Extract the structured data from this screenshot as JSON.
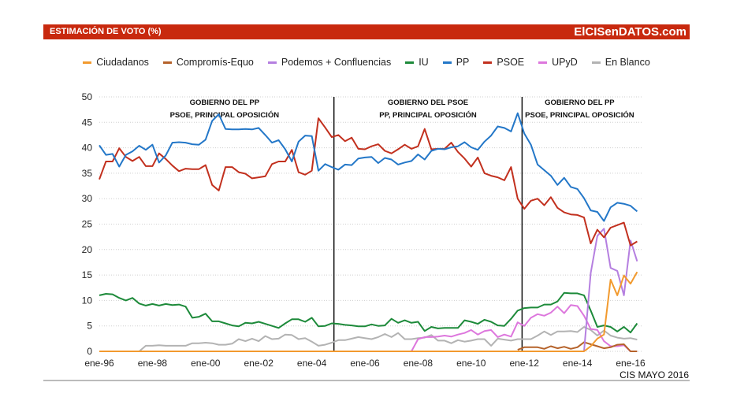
{
  "header": {
    "title": "ESTIMACIÓN DE VOTO (%)",
    "brand": "ElCISenDATOS.com"
  },
  "source": "CIS MAYO 2016",
  "chart_data": {
    "type": "line",
    "ylim": [
      0,
      50
    ],
    "yticks": [
      0,
      5,
      10,
      15,
      20,
      25,
      30,
      35,
      40,
      45,
      50
    ],
    "xtick_labels": [
      "ene-96",
      "ene-98",
      "ene-00",
      "ene-02",
      "ene-04",
      "ene-06",
      "ene-08",
      "ene-10",
      "ene-12",
      "ene-14",
      "ene-16"
    ],
    "grid": "horizontal dotted",
    "legend": "top",
    "x": [
      "1996-01",
      "1996-04",
      "1996-07",
      "1996-10",
      "1997-01",
      "1997-04",
      "1997-07",
      "1997-10",
      "1998-01",
      "1998-04",
      "1998-07",
      "1998-10",
      "1999-01",
      "1999-04",
      "1999-07",
      "1999-10",
      "2000-01",
      "2000-04",
      "2000-07",
      "2000-10",
      "2001-01",
      "2001-04",
      "2001-07",
      "2001-10",
      "2002-01",
      "2002-04",
      "2002-07",
      "2002-10",
      "2003-01",
      "2003-04",
      "2003-07",
      "2003-10",
      "2004-01",
      "2004-04",
      "2004-07",
      "2004-10",
      "2005-01",
      "2005-04",
      "2005-07",
      "2005-10",
      "2006-01",
      "2006-04",
      "2006-07",
      "2006-10",
      "2007-01",
      "2007-04",
      "2007-07",
      "2007-10",
      "2008-01",
      "2008-04",
      "2008-07",
      "2008-10",
      "2009-01",
      "2009-04",
      "2009-07",
      "2009-10",
      "2010-01",
      "2010-04",
      "2010-07",
      "2010-10",
      "2011-01",
      "2011-04",
      "2011-07",
      "2011-10",
      "2012-01",
      "2012-04",
      "2012-07",
      "2012-10",
      "2013-01",
      "2013-04",
      "2013-07",
      "2013-10",
      "2014-01",
      "2014-04",
      "2014-07",
      "2014-10",
      "2015-01",
      "2015-04",
      "2015-07",
      "2015-10",
      "2016-01",
      "2016-04"
    ],
    "series": [
      {
        "name": "Ciudadanos",
        "color": "#f29a2e",
        "values": [
          0,
          0,
          0,
          0,
          0,
          0,
          0,
          0,
          0,
          0,
          0,
          0,
          0,
          0,
          0,
          0,
          0,
          0,
          0,
          0,
          0,
          0,
          0,
          0,
          0,
          0,
          0,
          0,
          0,
          0,
          0,
          0,
          0,
          0,
          0,
          0,
          0,
          0,
          0,
          0,
          0,
          0,
          0,
          0,
          0,
          0,
          0,
          0,
          0,
          0,
          0,
          0,
          0,
          0,
          0,
          0,
          0,
          0,
          0,
          0,
          0,
          0,
          0,
          0,
          0,
          0,
          0,
          0,
          0,
          0,
          0,
          0,
          0,
          0,
          1.0,
          2.5,
          3.3,
          14.1,
          11.0,
          14.9,
          13.3,
          15.6
        ]
      },
      {
        "name": "Compromís-Equo",
        "color": "#b5622a",
        "values": [
          null,
          null,
          null,
          null,
          null,
          null,
          null,
          null,
          null,
          null,
          null,
          null,
          null,
          null,
          null,
          null,
          null,
          null,
          null,
          null,
          null,
          null,
          null,
          null,
          null,
          null,
          null,
          null,
          null,
          null,
          null,
          null,
          null,
          null,
          null,
          null,
          null,
          null,
          null,
          null,
          null,
          null,
          null,
          null,
          null,
          null,
          null,
          null,
          null,
          null,
          null,
          null,
          null,
          null,
          null,
          null,
          null,
          null,
          null,
          null,
          null,
          null,
          null,
          0.3,
          0.8,
          0.8,
          0.8,
          0.5,
          1.0,
          0.6,
          0.9,
          0.5,
          0.8,
          1.8,
          1.4,
          1.0,
          0.6,
          0.8,
          1.3,
          1.4,
          0.0,
          0.0
        ]
      },
      {
        "name": "Podemos + Confluencias",
        "color": "#b57fe0",
        "values": [
          null,
          null,
          null,
          null,
          null,
          null,
          null,
          null,
          null,
          null,
          null,
          null,
          null,
          null,
          null,
          null,
          null,
          null,
          null,
          null,
          null,
          null,
          null,
          null,
          null,
          null,
          null,
          null,
          null,
          null,
          null,
          null,
          null,
          null,
          null,
          null,
          null,
          null,
          null,
          null,
          null,
          null,
          null,
          null,
          null,
          null,
          null,
          null,
          null,
          null,
          null,
          null,
          null,
          null,
          null,
          null,
          null,
          null,
          null,
          null,
          null,
          null,
          null,
          null,
          null,
          null,
          null,
          null,
          null,
          null,
          null,
          null,
          null,
          0,
          15.4,
          22.7,
          24.1,
          16.4,
          15.8,
          11.0,
          21.8,
          17.7
        ]
      },
      {
        "name": "IU",
        "color": "#1d8a3a",
        "values": [
          11.0,
          11.3,
          11.2,
          10.5,
          10.0,
          10.5,
          9.4,
          9.0,
          9.3,
          9.0,
          9.3,
          9.1,
          9.2,
          8.8,
          6.6,
          6.8,
          7.4,
          5.9,
          5.9,
          5.5,
          5.1,
          4.9,
          5.6,
          5.5,
          5.8,
          5.4,
          5.0,
          4.6,
          5.5,
          6.3,
          6.3,
          5.8,
          6.6,
          4.9,
          5.0,
          5.5,
          5.4,
          5.2,
          5.1,
          4.9,
          4.9,
          5.3,
          5.0,
          5.1,
          6.4,
          5.6,
          6.1,
          5.6,
          5.8,
          4.0,
          4.8,
          4.5,
          4.6,
          4.6,
          4.6,
          6.1,
          5.8,
          5.4,
          6.2,
          5.8,
          5.1,
          5.0,
          6.4,
          8.0,
          8.5,
          8.6,
          8.6,
          9.2,
          9.2,
          9.8,
          11.5,
          11.4,
          11.4,
          11.0,
          8.0,
          4.8,
          5.1,
          4.8,
          3.9,
          4.8,
          3.7,
          5.5
        ]
      },
      {
        "name": "PP",
        "color": "#2377c8",
        "values": [
          40.5,
          38.6,
          38.8,
          36.3,
          38.6,
          39.3,
          40.4,
          39.6,
          40.6,
          37.1,
          38.5,
          41.0,
          41.1,
          41.0,
          40.7,
          40.6,
          41.6,
          45.3,
          46.6,
          43.7,
          43.6,
          43.6,
          43.7,
          43.6,
          43.9,
          42.5,
          41.0,
          41.5,
          39.7,
          37.3,
          41.2,
          42.4,
          42.3,
          35.5,
          36.8,
          36.2,
          35.7,
          36.7,
          36.6,
          37.9,
          38.1,
          38.2,
          37.0,
          38.0,
          37.7,
          36.7,
          37.1,
          37.4,
          38.7,
          37.7,
          39.4,
          39.8,
          39.7,
          40.1,
          40.3,
          41.1,
          40.1,
          39.6,
          41.2,
          42.4,
          44.2,
          43.9,
          43.2,
          46.8,
          42.8,
          40.6,
          36.7,
          35.6,
          34.5,
          32.7,
          34.1,
          32.3,
          31.9,
          30.1,
          27.7,
          27.4,
          25.6,
          28.3,
          29.2,
          29.0,
          28.6,
          27.5
        ]
      },
      {
        "name": "PSOE",
        "color": "#c2301e",
        "values": [
          33.8,
          37.3,
          37.3,
          39.9,
          38.2,
          37.4,
          38.2,
          36.4,
          36.4,
          38.9,
          37.8,
          36.5,
          35.4,
          35.9,
          35.8,
          35.8,
          36.6,
          32.7,
          31.6,
          36.2,
          36.2,
          35.2,
          34.9,
          34.0,
          34.2,
          34.4,
          36.8,
          37.3,
          37.3,
          39.6,
          35.2,
          34.7,
          35.5,
          45.8,
          44.0,
          42.1,
          42.5,
          41.3,
          42.0,
          39.8,
          39.7,
          40.3,
          40.7,
          39.4,
          38.9,
          39.7,
          40.6,
          39.8,
          40.3,
          43.7,
          39.7,
          39.8,
          39.8,
          41.0,
          39.2,
          37.9,
          36.3,
          38.1,
          35.0,
          34.5,
          34.2,
          33.6,
          36.2,
          30.0,
          28.0,
          29.6,
          30.0,
          28.7,
          30.3,
          28.2,
          27.3,
          26.9,
          26.8,
          26.3,
          21.2,
          23.9,
          22.4,
          24.3,
          24.8,
          25.3,
          20.8,
          21.6
        ]
      },
      {
        "name": "UPyD",
        "color": "#dd77dd",
        "values": [
          null,
          null,
          null,
          null,
          null,
          null,
          null,
          null,
          null,
          null,
          null,
          null,
          null,
          null,
          null,
          null,
          null,
          null,
          null,
          null,
          null,
          null,
          null,
          null,
          null,
          null,
          null,
          null,
          null,
          null,
          null,
          null,
          null,
          null,
          null,
          null,
          null,
          null,
          null,
          null,
          null,
          null,
          null,
          null,
          null,
          null,
          null,
          0,
          2.4,
          2.8,
          2.8,
          2.9,
          3.1,
          2.9,
          3.3,
          3.6,
          4.2,
          3.3,
          4.0,
          4.2,
          2.8,
          3.3,
          2.9,
          5.7,
          5.0,
          6.6,
          7.3,
          7.0,
          7.6,
          8.8,
          7.5,
          9.1,
          8.9,
          7.0,
          4.4,
          4.2,
          2.0,
          1.0,
          1.0,
          1.2,
          0.0,
          0.0
        ]
      },
      {
        "name": "En Blanco",
        "color": "#b3b3b3",
        "values": [
          null,
          null,
          null,
          null,
          null,
          null,
          0,
          1.1,
          1.1,
          1.2,
          1.1,
          1.1,
          1.1,
          1.1,
          1.6,
          1.6,
          1.7,
          1.6,
          1.3,
          1.3,
          1.5,
          2.4,
          2.0,
          2.5,
          2.0,
          3.0,
          2.4,
          2.5,
          3.3,
          3.2,
          2.4,
          2.6,
          1.9,
          1.1,
          1.3,
          1.7,
          2.2,
          2.2,
          2.5,
          2.8,
          2.6,
          2.4,
          2.8,
          3.4,
          2.8,
          3.6,
          2.4,
          2.4,
          2.6,
          2.7,
          3.2,
          2.1,
          2.1,
          1.6,
          2.2,
          1.9,
          2.1,
          2.4,
          2.4,
          1.1,
          2.5,
          2.3,
          2.1,
          2.4,
          2.4,
          2.4,
          3.1,
          3.9,
          3.2,
          3.9,
          3.9,
          4.0,
          3.8,
          4.8,
          4.2,
          3.1,
          4.1,
          3.1,
          2.7,
          2.5,
          2.6,
          2.3
        ]
      }
    ],
    "legend_order": [
      "Ciudadanos",
      "Compromís-Equo",
      "Podemos + Confluencias",
      "IU",
      "PP",
      "PSOE",
      "UPyD",
      "En Blanco"
    ],
    "periods": [
      {
        "start": "1996-01",
        "end": "2004-11",
        "line1": "GOBIERNO DEL PP",
        "line2": "PSOE, PRINCIPAL OPOSICIÓN"
      },
      {
        "start": "2004-11",
        "end": "2011-12",
        "line1": "GOBIERNO DEL PSOE",
        "line2": "PP, PRINCIPAL OPOSICIÓN"
      },
      {
        "start": "2011-12",
        "end": "2016-04",
        "line1": "GOBIERNO DEL PP",
        "line2": "PSOE, PRINCIPAL OPOSICIÓN"
      }
    ]
  }
}
